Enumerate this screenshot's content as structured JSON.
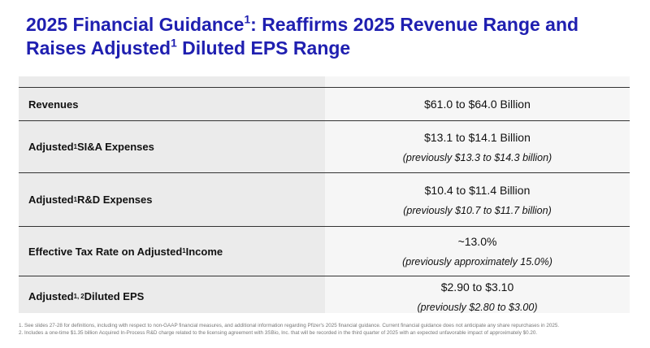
{
  "header": {
    "title": [
      "2025 Financial Guidance",
      "1",
      ": Reaffirms 2025 Revenue Range and",
      "Raises Adjusted",
      "1",
      " Diluted EPS Range"
    ]
  },
  "table": {
    "rows": [
      {
        "label": [
          "Revenues"
        ],
        "value": "$61.0 to $64.0 Billion"
      },
      {
        "label": [
          "Adjusted",
          "1",
          " SI&A Expenses"
        ],
        "value": "$13.1 to $14.1 Billion",
        "note": "(previously $13.3 to $14.3 billion)"
      },
      {
        "label": [
          "Adjusted",
          "1",
          " R&D Expenses"
        ],
        "value": "$10.4 to $11.4 Billion",
        "note": "(previously $10.7 to $11.7 billion)"
      },
      {
        "label": [
          "Effective Tax Rate on Adjusted",
          "1",
          " Income"
        ],
        "value": "~13.0%",
        "note": "(previously approximately 15.0%)"
      },
      {
        "label": [
          "Adjusted",
          "1, 2",
          " Diluted EPS"
        ],
        "value": "$2.90 to $3.10",
        "note": "(previously $2.80 to $3.00)"
      }
    ]
  },
  "footnotes": [
    "1. See slides 27-28 for definitions, including with respect to non-GAAP financial measures, and additional information regarding Pfizer's 2025 financial guidance. Current financial guidance does not anticipate any share repurchases in 2025.",
    "2. Includes a one-time $1.35 billion Acquired In-Process R&D charge related to the licensing agreement with 3SBio, Inc. that will be recorded in the third quarter of 2025 with an expected unfavorable impact of approximately $0.20."
  ]
}
